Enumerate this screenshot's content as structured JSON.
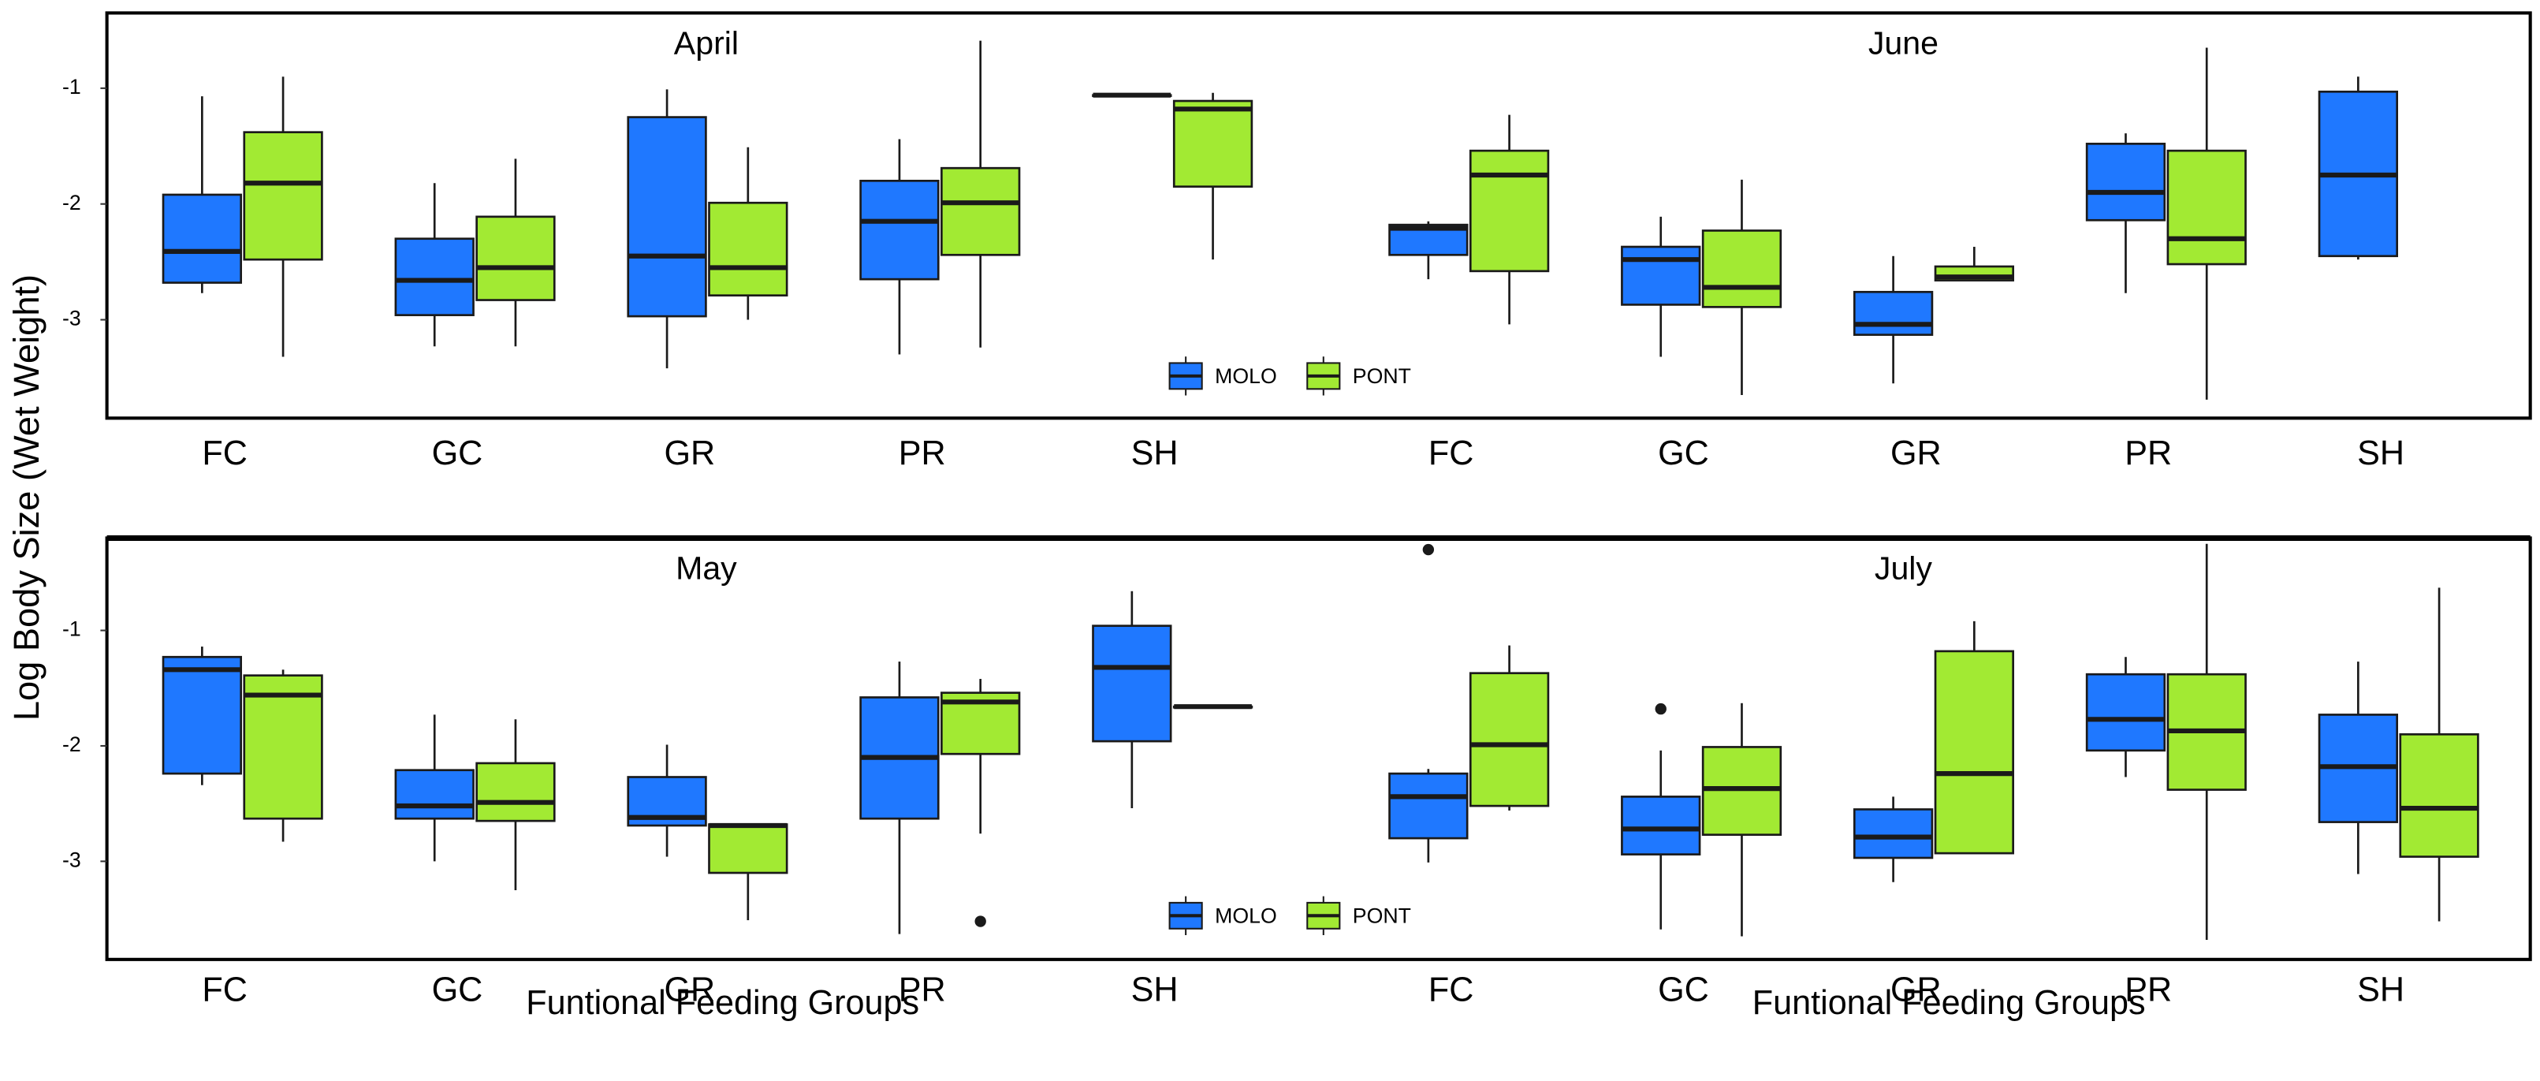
{
  "chart_data": [
    {
      "type": "box",
      "title": "April",
      "ylabel": "Log Body Size (Wet Weight)",
      "categories": [
        "FC",
        "GC",
        "GR",
        "PR",
        "SH"
      ],
      "ylim": [
        -3.85,
        -0.35
      ],
      "yticks": [
        -1,
        -2,
        -3
      ],
      "legend": "bottom-center",
      "series": [
        {
          "name": "MOLO",
          "color": "#1f78ff",
          "values": [
            {
              "min": -2.77,
              "q1": -2.68,
              "median": -2.41,
              "q3": -1.92,
              "max": -1.07
            },
            {
              "min": -3.23,
              "q1": -2.96,
              "median": -2.66,
              "q3": -2.3,
              "max": -1.82
            },
            {
              "min": -3.42,
              "q1": -2.97,
              "median": -2.45,
              "q3": -1.25,
              "max": -1.01
            },
            {
              "min": -3.3,
              "q1": -2.65,
              "median": -2.15,
              "q3": -1.8,
              "max": -1.44
            },
            {
              "min": -1.06,
              "q1": -1.06,
              "median": -1.06,
              "q3": -1.06,
              "max": -1.06
            }
          ]
        },
        {
          "name": "PONT",
          "color": "#a2ea33",
          "values": [
            {
              "min": -3.32,
              "q1": -2.48,
              "median": -1.82,
              "q3": -1.38,
              "max": -0.9
            },
            {
              "min": -3.23,
              "q1": -2.83,
              "median": -2.55,
              "q3": -2.11,
              "max": -1.61
            },
            {
              "min": -3.0,
              "q1": -2.79,
              "median": -2.55,
              "q3": -1.99,
              "max": -1.51
            },
            {
              "min": -3.24,
              "q1": -2.44,
              "median": -1.99,
              "q3": -1.69,
              "max": -0.59
            },
            {
              "min": -2.48,
              "q1": -1.85,
              "median": -1.18,
              "q3": -1.11,
              "max": -1.04
            }
          ]
        }
      ]
    },
    {
      "type": "box",
      "title": "June",
      "categories": [
        "FC",
        "GC",
        "GR",
        "PR",
        "SH"
      ],
      "ylim": [
        -3.85,
        -0.35
      ],
      "series": [
        {
          "color": "#1f78ff",
          "values": [
            {
              "min": -2.65,
              "q1": -2.44,
              "median": -2.21,
              "q3": -2.18,
              "max": -2.15
            },
            {
              "min": -3.32,
              "q1": -2.87,
              "median": -2.48,
              "q3": -2.37,
              "max": -2.11
            },
            {
              "min": -3.55,
              "q1": -3.13,
              "median": -3.04,
              "q3": -2.76,
              "max": -2.45
            },
            {
              "min": -2.77,
              "q1": -2.14,
              "median": -1.9,
              "q3": -1.48,
              "max": -1.39
            },
            {
              "min": -2.48,
              "q1": -2.45,
              "median": -1.75,
              "q3": -1.03,
              "max": -0.9
            }
          ]
        },
        {
          "color": "#a2ea33",
          "values": [
            {
              "min": -3.04,
              "q1": -2.58,
              "median": -1.75,
              "q3": -1.54,
              "max": -1.23
            },
            {
              "min": -3.65,
              "q1": -2.89,
              "median": -2.72,
              "q3": -2.23,
              "max": -1.79
            },
            {
              "min": -2.66,
              "q1": -2.66,
              "median": -2.63,
              "q3": -2.54,
              "max": -2.37
            },
            {
              "min": -3.69,
              "q1": -2.52,
              "median": -2.3,
              "q3": -1.54,
              "max": -0.65
            },
            null
          ]
        }
      ]
    },
    {
      "type": "box",
      "title": "May",
      "xlabel": "Funtional Feeding Groups",
      "categories": [
        "FC",
        "GC",
        "GR",
        "PR",
        "SH"
      ],
      "ylim": [
        -3.85,
        -0.2
      ],
      "yticks": [
        -1,
        -2,
        -3
      ],
      "legend": "bottom-center",
      "series": [
        {
          "name": "MOLO",
          "color": "#1f78ff",
          "values": [
            {
              "min": -2.34,
              "q1": -2.24,
              "median": -1.34,
              "q3": -1.23,
              "max": -1.14
            },
            {
              "min": -3.0,
              "q1": -2.63,
              "median": -2.52,
              "q3": -2.21,
              "max": -1.73
            },
            {
              "min": -2.96,
              "q1": -2.69,
              "median": -2.62,
              "q3": -2.27,
              "max": -1.99
            },
            {
              "min": -3.63,
              "q1": -2.63,
              "median": -2.1,
              "q3": -1.58,
              "max": -1.27
            },
            {
              "min": -2.54,
              "q1": -1.96,
              "median": -1.32,
              "q3": -0.96,
              "max": -0.66
            }
          ],
          "outliers": [
            [],
            [],
            [],
            [],
            []
          ]
        },
        {
          "name": "PONT",
          "color": "#a2ea33",
          "values": [
            {
              "min": -2.83,
              "q1": -2.63,
              "median": -1.56,
              "q3": -1.39,
              "max": -1.34
            },
            {
              "min": -3.25,
              "q1": -2.65,
              "median": -2.49,
              "q3": -2.15,
              "max": -1.77
            },
            {
              "min": -3.51,
              "q1": -3.1,
              "median": -2.69,
              "q3": -2.68,
              "max": -2.68
            },
            {
              "min": -2.76,
              "q1": -2.07,
              "median": -1.62,
              "q3": -1.54,
              "max": -1.42
            },
            {
              "min": -1.66,
              "q1": -1.66,
              "median": -1.66,
              "q3": -1.66,
              "max": -1.66
            }
          ],
          "outliers": [
            [],
            [],
            [],
            [
              -3.52
            ],
            []
          ]
        }
      ]
    },
    {
      "type": "box",
      "title": "July",
      "xlabel": "Funtional Feeding Groups",
      "categories": [
        "FC",
        "GC",
        "GR",
        "PR",
        "SH"
      ],
      "ylim": [
        -3.85,
        -0.2
      ],
      "series": [
        {
          "color": "#1f78ff",
          "values": [
            {
              "min": -3.01,
              "q1": -2.8,
              "median": -2.44,
              "q3": -2.24,
              "max": -2.2
            },
            {
              "min": -3.59,
              "q1": -2.94,
              "median": -2.72,
              "q3": -2.44,
              "max": -2.04
            },
            {
              "min": -3.18,
              "q1": -2.97,
              "median": -2.79,
              "q3": -2.55,
              "max": -2.44
            },
            {
              "min": -2.27,
              "q1": -2.04,
              "median": -1.77,
              "q3": -1.38,
              "max": -1.23
            },
            {
              "min": -3.11,
              "q1": -2.66,
              "median": -2.18,
              "q3": -1.73,
              "max": -1.27
            }
          ],
          "outliers": [
            [
              -0.3
            ],
            [
              -1.68
            ],
            [],
            [],
            []
          ]
        },
        {
          "color": "#a2ea33",
          "values": [
            {
              "min": -2.56,
              "q1": -2.52,
              "median": -1.99,
              "q3": -1.37,
              "max": -1.13
            },
            {
              "min": -3.65,
              "q1": -2.77,
              "median": -2.37,
              "q3": -2.01,
              "max": -1.63
            },
            {
              "min": -2.93,
              "q1": -2.93,
              "median": -2.24,
              "q3": -1.18,
              "max": -0.92
            },
            {
              "min": -3.68,
              "q1": -2.38,
              "median": -1.87,
              "q3": -1.38,
              "max": -0.25
            },
            {
              "min": -3.52,
              "q1": -2.96,
              "median": -2.54,
              "q3": -1.9,
              "max": -0.63
            }
          ],
          "outliers": [
            [],
            [],
            [],
            [],
            []
          ]
        }
      ]
    }
  ]
}
